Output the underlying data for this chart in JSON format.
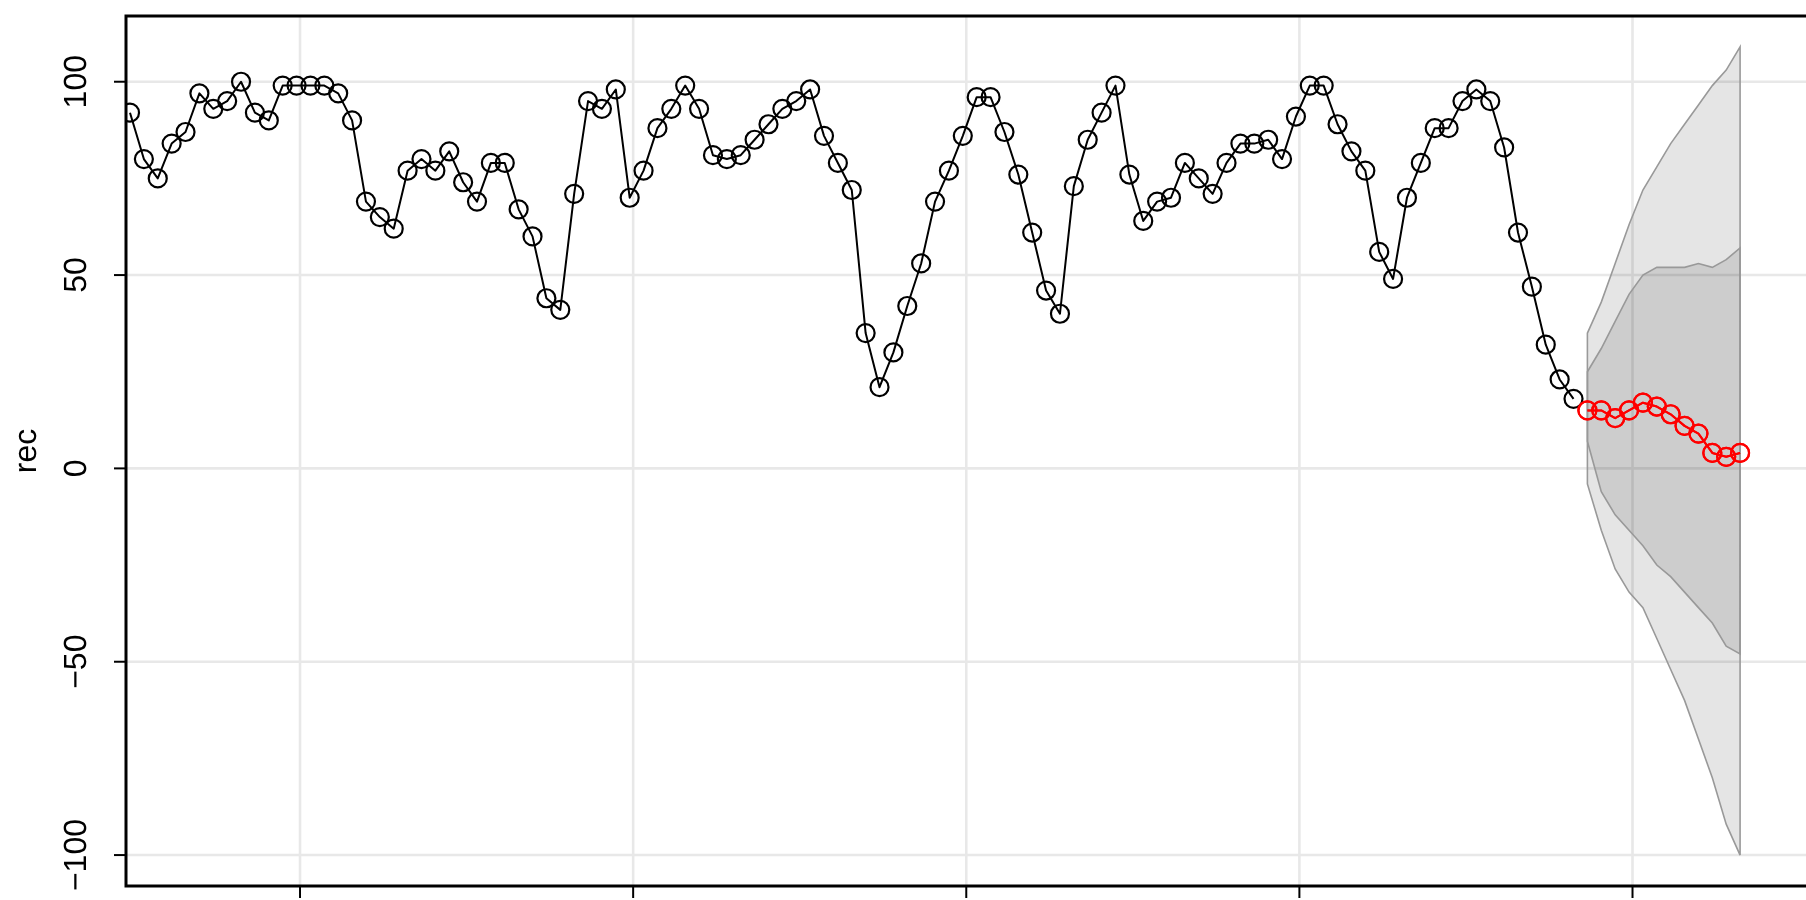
{
  "chart_data": {
    "type": "line",
    "ylabel": "rec",
    "categories": [
      null,
      null,
      null,
      null,
      null,
      null,
      null,
      null,
      null,
      null,
      null,
      null,
      null,
      null,
      null,
      null,
      null,
      null,
      null,
      null,
      null,
      null,
      null,
      null,
      null,
      null,
      null,
      null,
      null,
      null,
      null,
      null,
      null,
      null,
      null,
      null,
      null,
      null,
      null,
      null,
      null,
      null,
      null,
      null,
      null,
      null,
      null,
      null,
      null,
      null,
      null,
      null,
      null,
      null,
      null,
      null,
      null,
      null,
      null,
      null,
      null,
      null,
      null,
      null,
      null,
      null,
      null,
      null,
      null,
      null,
      null,
      null,
      null,
      null,
      null,
      null,
      null,
      null,
      null,
      null,
      null,
      null,
      null,
      null,
      null,
      null,
      null,
      null,
      null,
      null,
      null,
      null,
      null,
      null,
      null,
      null,
      null,
      null,
      null,
      null,
      null,
      null,
      null,
      null,
      null,
      null,
      null,
      null,
      null,
      null,
      null,
      null,
      null,
      null,
      null,
      null,
      null
    ],
    "ylim": [
      -108,
      117
    ],
    "yticks": [
      {
        "value": -100,
        "label": "−100"
      },
      {
        "value": -50,
        "label": "−50"
      },
      0,
      50,
      100
    ],
    "tick_labels": "y",
    "grid": true,
    "marker": "circle",
    "line_style": "solid",
    "series": [
      {
        "color": "#000000",
        "values": [
          92,
          80,
          75,
          84,
          87,
          97,
          93,
          95,
          100,
          92,
          90,
          99,
          99,
          99,
          99,
          97,
          90,
          69,
          65,
          62,
          77,
          80,
          77,
          82,
          74,
          69,
          79,
          79,
          67,
          60,
          44,
          41,
          71,
          95,
          93,
          98,
          70,
          77,
          88,
          93,
          99,
          93,
          81,
          80,
          81,
          85,
          89,
          93,
          95,
          98,
          86,
          79,
          72,
          35,
          21,
          30,
          42,
          53,
          69,
          77,
          86,
          96,
          96,
          87,
          76,
          61,
          46,
          40,
          73,
          85,
          92,
          99,
          76,
          64,
          69,
          70,
          79,
          75,
          71,
          79,
          84,
          84,
          85,
          80,
          91,
          99,
          99,
          89,
          82,
          77,
          56,
          49,
          70,
          79,
          88,
          88,
          95,
          98,
          95,
          83,
          61,
          47,
          32,
          23,
          18,
          null,
          null,
          null,
          null,
          null,
          null,
          null,
          null,
          null,
          null,
          null,
          null
        ]
      },
      {
        "color": "#ff0000",
        "values": [
          null,
          null,
          null,
          null,
          null,
          null,
          null,
          null,
          null,
          null,
          null,
          null,
          null,
          null,
          null,
          null,
          null,
          null,
          null,
          null,
          null,
          null,
          null,
          null,
          null,
          null,
          null,
          null,
          null,
          null,
          null,
          null,
          null,
          null,
          null,
          null,
          null,
          null,
          null,
          null,
          null,
          null,
          null,
          null,
          null,
          null,
          null,
          null,
          null,
          null,
          null,
          null,
          null,
          null,
          null,
          null,
          null,
          null,
          null,
          null,
          null,
          null,
          null,
          null,
          null,
          null,
          null,
          null,
          null,
          null,
          null,
          null,
          null,
          null,
          null,
          null,
          null,
          null,
          null,
          null,
          null,
          null,
          null,
          null,
          null,
          null,
          null,
          null,
          null,
          null,
          null,
          null,
          null,
          null,
          null,
          null,
          null,
          null,
          null,
          null,
          null,
          null,
          null,
          null,
          null,
          15,
          15,
          13,
          15,
          17,
          16,
          14,
          11,
          9,
          4,
          3,
          4
        ],
        "lower": [
          null,
          null,
          null,
          null,
          null,
          null,
          null,
          null,
          null,
          null,
          null,
          null,
          null,
          null,
          null,
          null,
          null,
          null,
          null,
          null,
          null,
          null,
          null,
          null,
          null,
          null,
          null,
          null,
          null,
          null,
          null,
          null,
          null,
          null,
          null,
          null,
          null,
          null,
          null,
          null,
          null,
          null,
          null,
          null,
          null,
          null,
          null,
          null,
          null,
          null,
          null,
          null,
          null,
          null,
          null,
          null,
          null,
          null,
          null,
          null,
          null,
          null,
          null,
          null,
          null,
          null,
          null,
          null,
          null,
          null,
          null,
          null,
          null,
          null,
          null,
          null,
          null,
          null,
          null,
          null,
          null,
          null,
          null,
          null,
          null,
          null,
          null,
          null,
          null,
          null,
          null,
          null,
          null,
          null,
          null,
          null,
          null,
          null,
          null,
          null,
          null,
          null,
          null,
          null,
          null,
          -4,
          -16,
          -26,
          -32,
          -36,
          -44,
          -52,
          -60,
          -70,
          -80,
          -92,
          -100
        ],
        "upper": [
          null,
          null,
          null,
          null,
          null,
          null,
          null,
          null,
          null,
          null,
          null,
          null,
          null,
          null,
          null,
          null,
          null,
          null,
          null,
          null,
          null,
          null,
          null,
          null,
          null,
          null,
          null,
          null,
          null,
          null,
          null,
          null,
          null,
          null,
          null,
          null,
          null,
          null,
          null,
          null,
          null,
          null,
          null,
          null,
          null,
          null,
          null,
          null,
          null,
          null,
          null,
          null,
          null,
          null,
          null,
          null,
          null,
          null,
          null,
          null,
          null,
          null,
          null,
          null,
          null,
          null,
          null,
          null,
          null,
          null,
          null,
          null,
          null,
          null,
          null,
          null,
          null,
          null,
          null,
          null,
          null,
          null,
          null,
          null,
          null,
          null,
          null,
          null,
          null,
          null,
          null,
          null,
          null,
          null,
          null,
          null,
          null,
          null,
          null,
          null,
          null,
          null,
          null,
          null,
          null,
          35,
          43,
          53,
          63,
          72,
          78,
          84,
          89,
          94,
          99,
          103,
          109
        ]
      },
      {
        "color": "#ff0000",
        "values": [
          null,
          null,
          null,
          null,
          null,
          null,
          null,
          null,
          null,
          null,
          null,
          null,
          null,
          null,
          null,
          null,
          null,
          null,
          null,
          null,
          null,
          null,
          null,
          null,
          null,
          null,
          null,
          null,
          null,
          null,
          null,
          null,
          null,
          null,
          null,
          null,
          null,
          null,
          null,
          null,
          null,
          null,
          null,
          null,
          null,
          null,
          null,
          null,
          null,
          null,
          null,
          null,
          null,
          null,
          null,
          null,
          null,
          null,
          null,
          null,
          null,
          null,
          null,
          null,
          null,
          null,
          null,
          null,
          null,
          null,
          null,
          null,
          null,
          null,
          null,
          null,
          null,
          null,
          null,
          null,
          null,
          null,
          null,
          null,
          null,
          null,
          null,
          null,
          null,
          null,
          null,
          null,
          null,
          null,
          null,
          null,
          null,
          null,
          null,
          null,
          null,
          null,
          null,
          null,
          null,
          15,
          15,
          13,
          15,
          17,
          16,
          14,
          11,
          9,
          4,
          3,
          4
        ],
        "lower": [
          null,
          null,
          null,
          null,
          null,
          null,
          null,
          null,
          null,
          null,
          null,
          null,
          null,
          null,
          null,
          null,
          null,
          null,
          null,
          null,
          null,
          null,
          null,
          null,
          null,
          null,
          null,
          null,
          null,
          null,
          null,
          null,
          null,
          null,
          null,
          null,
          null,
          null,
          null,
          null,
          null,
          null,
          null,
          null,
          null,
          null,
          null,
          null,
          null,
          null,
          null,
          null,
          null,
          null,
          null,
          null,
          null,
          null,
          null,
          null,
          null,
          null,
          null,
          null,
          null,
          null,
          null,
          null,
          null,
          null,
          null,
          null,
          null,
          null,
          null,
          null,
          null,
          null,
          null,
          null,
          null,
          null,
          null,
          null,
          null,
          null,
          null,
          null,
          null,
          null,
          null,
          null,
          null,
          null,
          null,
          null,
          null,
          null,
          null,
          null,
          null,
          null,
          null,
          null,
          null,
          7,
          -6,
          -12,
          -16,
          -20,
          -25,
          -28,
          -32,
          -36,
          -40,
          -46,
          -48
        ],
        "upper": [
          null,
          null,
          null,
          null,
          null,
          null,
          null,
          null,
          null,
          null,
          null,
          null,
          null,
          null,
          null,
          null,
          null,
          null,
          null,
          null,
          null,
          null,
          null,
          null,
          null,
          null,
          null,
          null,
          null,
          null,
          null,
          null,
          null,
          null,
          null,
          null,
          null,
          null,
          null,
          null,
          null,
          null,
          null,
          null,
          null,
          null,
          null,
          null,
          null,
          null,
          null,
          null,
          null,
          null,
          null,
          null,
          null,
          null,
          null,
          null,
          null,
          null,
          null,
          null,
          null,
          null,
          null,
          null,
          null,
          null,
          null,
          null,
          null,
          null,
          null,
          null,
          null,
          null,
          null,
          null,
          null,
          null,
          null,
          null,
          null,
          null,
          null,
          null,
          null,
          null,
          null,
          null,
          null,
          null,
          null,
          null,
          null,
          null,
          null,
          null,
          null,
          null,
          null,
          null,
          null,
          25,
          31,
          38,
          45,
          50,
          52,
          52,
          52,
          53,
          52,
          54,
          57
        ]
      }
    ]
  }
}
